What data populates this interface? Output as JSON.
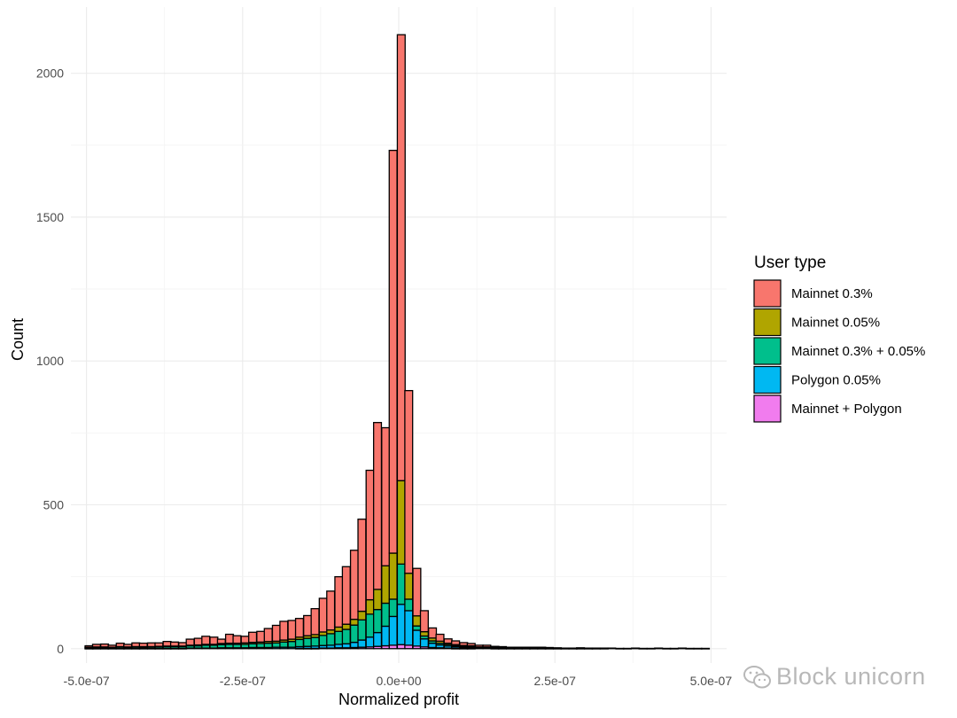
{
  "chart_data": {
    "type": "bar",
    "stacked": true,
    "title": "",
    "xlabel": "Normalized profit",
    "ylabel": "Count",
    "xlim": [
      -5.25e-07,
      5.25e-07
    ],
    "ylim": [
      -50,
      2230
    ],
    "x_ticks": [
      {
        "value": -5e-07,
        "label": "-5.0e-07"
      },
      {
        "value": -2.5e-07,
        "label": "-2.5e-07"
      },
      {
        "value": 0,
        "label": "0.0e+00"
      },
      {
        "value": 2.5e-07,
        "label": "2.5e-07"
      },
      {
        "value": 5e-07,
        "label": "5.0e-07"
      }
    ],
    "y_ticks": [
      {
        "value": 0,
        "label": "0"
      },
      {
        "value": 500,
        "label": "500"
      },
      {
        "value": 1000,
        "label": "1000"
      },
      {
        "value": 1500,
        "label": "1500"
      },
      {
        "value": 2000,
        "label": "2000"
      }
    ],
    "grid": true,
    "legend": {
      "title": "User type",
      "position": "right"
    },
    "bin_width": 1.25e-08,
    "x": [
      -4.96e-07,
      -4.84e-07,
      -4.71e-07,
      -4.59e-07,
      -4.46e-07,
      -4.34e-07,
      -4.21e-07,
      -4.09e-07,
      -3.96e-07,
      -3.84e-07,
      -3.71e-07,
      -3.59e-07,
      -3.46e-07,
      -3.34e-07,
      -3.21e-07,
      -3.09e-07,
      -2.96e-07,
      -2.84e-07,
      -2.71e-07,
      -2.59e-07,
      -2.46e-07,
      -2.34e-07,
      -2.21e-07,
      -2.09e-07,
      -1.96e-07,
      -1.84e-07,
      -1.71e-07,
      -1.59e-07,
      -1.46e-07,
      -1.34e-07,
      -1.21e-07,
      -1.09e-07,
      -9.6e-08,
      -8.4e-08,
      -7.1e-08,
      -5.9e-08,
      -4.6e-08,
      -3.4e-08,
      -2.1e-08,
      -9e-09,
      4e-09,
      1.6e-08,
      2.9e-08,
      4.1e-08,
      5.4e-08,
      6.6e-08,
      7.9e-08,
      9.1e-08,
      1.04e-07,
      1.16e-07,
      1.29e-07,
      1.41e-07,
      1.54e-07,
      1.66e-07,
      1.79e-07,
      1.91e-07,
      2.04e-07,
      2.16e-07,
      2.29e-07,
      2.41e-07,
      2.54e-07,
      2.66e-07,
      2.79e-07,
      2.91e-07,
      3.04e-07,
      3.16e-07,
      3.29e-07,
      3.41e-07,
      3.54e-07,
      3.66e-07,
      3.79e-07,
      3.91e-07,
      4.04e-07,
      4.16e-07,
      4.29e-07,
      4.41e-07,
      4.54e-07,
      4.66e-07,
      4.79e-07,
      4.91e-07
    ],
    "series": [
      {
        "name": "Mainnet + Polygon",
        "color": "#F17CEE",
        "values": [
          0,
          0,
          0,
          0,
          0,
          0,
          0,
          0,
          0,
          0,
          0,
          0,
          0,
          0,
          0,
          0,
          0,
          0,
          0,
          0,
          0,
          0,
          0,
          0,
          0,
          0,
          0,
          1,
          1,
          1,
          2,
          2,
          3,
          3,
          4,
          5,
          6,
          8,
          10,
          12,
          14,
          12,
          9,
          6,
          4,
          3,
          2,
          1,
          1,
          1,
          0,
          0,
          0,
          0,
          0,
          0,
          0,
          0,
          0,
          0,
          0,
          0,
          0,
          0,
          0,
          0,
          0,
          0,
          0,
          0,
          0,
          0,
          0,
          0,
          0,
          0,
          0,
          0,
          0,
          0
        ]
      },
      {
        "name": "Polygon 0.05%",
        "color": "#00B8F2",
        "values": [
          1,
          1,
          1,
          1,
          1,
          1,
          1,
          1,
          1,
          1,
          1,
          1,
          1,
          2,
          2,
          2,
          2,
          3,
          3,
          3,
          3,
          4,
          4,
          4,
          5,
          5,
          5,
          6,
          7,
          8,
          9,
          10,
          12,
          14,
          18,
          25,
          34,
          48,
          68,
          100,
          140,
          120,
          55,
          28,
          15,
          10,
          7,
          5,
          4,
          3,
          2,
          2,
          1,
          1,
          1,
          1,
          1,
          1,
          0,
          0,
          0,
          0,
          0,
          0,
          0,
          0,
          0,
          0,
          0,
          0,
          0,
          0,
          0,
          0,
          0,
          0,
          0,
          0,
          0,
          0
        ]
      },
      {
        "name": "Mainnet 0.3% + 0.05%",
        "color": "#00BF8C",
        "values": [
          3,
          4,
          4,
          3,
          5,
          4,
          5,
          4,
          5,
          5,
          6,
          6,
          6,
          8,
          8,
          10,
          10,
          11,
          12,
          12,
          12,
          13,
          14,
          15,
          15,
          18,
          20,
          25,
          28,
          30,
          35,
          40,
          45,
          50,
          60,
          70,
          80,
          80,
          80,
          60,
          140,
          40,
          15,
          10,
          8,
          6,
          5,
          4,
          3,
          3,
          2,
          2,
          2,
          2,
          1,
          1,
          1,
          1,
          1,
          1,
          1,
          1,
          1,
          1,
          1,
          1,
          1,
          0,
          0,
          0,
          0,
          0,
          0,
          0,
          0,
          0,
          0,
          0,
          0,
          0
        ]
      },
      {
        "name": "Mainnet 0.05%",
        "color": "#B0A500",
        "values": [
          1,
          1,
          1,
          1,
          1,
          1,
          1,
          2,
          1,
          2,
          2,
          2,
          2,
          2,
          3,
          3,
          3,
          4,
          4,
          4,
          5,
          5,
          5,
          6,
          6,
          7,
          8,
          8,
          9,
          10,
          12,
          13,
          15,
          18,
          20,
          30,
          50,
          70,
          130,
          160,
          290,
          90,
          35,
          15,
          10,
          7,
          5,
          4,
          3,
          3,
          2,
          2,
          1,
          1,
          1,
          1,
          1,
          1,
          1,
          1,
          0,
          0,
          0,
          0,
          0,
          0,
          0,
          0,
          0,
          0,
          0,
          0,
          0,
          0,
          0,
          0,
          0,
          0,
          0,
          0
        ]
      },
      {
        "name": "Mainnet 0.3%",
        "color": "#F8766D",
        "values": [
          5,
          9,
          10,
          7,
          12,
          9,
          13,
          12,
          13,
          12,
          16,
          14,
          12,
          21,
          23,
          28,
          25,
          15,
          31,
          26,
          23,
          35,
          37,
          45,
          55,
          65,
          65,
          65,
          70,
          90,
          117,
          135,
          175,
          200,
          240,
          320,
          450,
          580,
          480,
          1400,
          1550,
          635,
          165,
          73,
          35,
          24,
          15,
          13,
          10,
          8,
          6,
          6,
          4,
          3,
          2,
          2,
          2,
          2,
          3,
          2,
          2,
          1,
          1,
          2,
          1,
          1,
          1,
          2,
          1,
          1,
          2,
          1,
          1,
          2,
          1,
          1,
          2,
          1,
          1,
          1
        ]
      }
    ]
  },
  "watermark": {
    "text": "Block unicorn",
    "icon": "wechat-icon"
  }
}
